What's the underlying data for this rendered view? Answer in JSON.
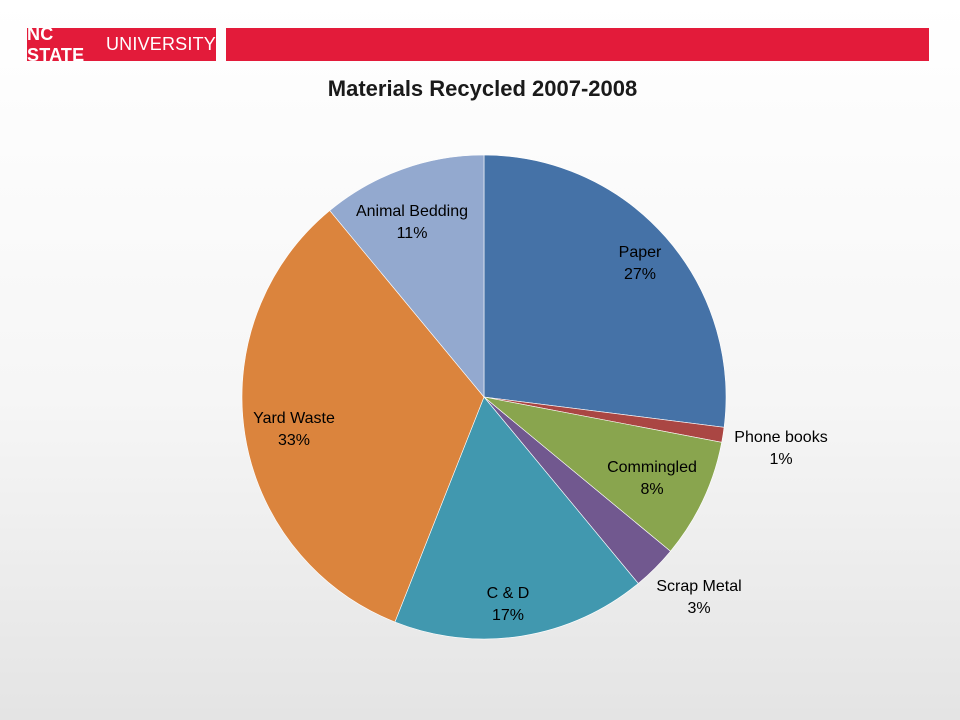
{
  "header": {
    "logo_bold": "NC STATE",
    "logo_regular": "UNIVERSITY",
    "brand_color": "#e31b3a"
  },
  "chart_data": {
    "type": "pie",
    "title": "Materials Recycled 2007-2008",
    "slices": [
      {
        "label": "Paper",
        "pct_label": "27%",
        "value": 27,
        "color": "#4572a7"
      },
      {
        "label": "Phone books",
        "pct_label": "1%",
        "value": 1,
        "color": "#aa4643"
      },
      {
        "label": "Commingled",
        "pct_label": "8%",
        "value": 8,
        "color": "#89a54e"
      },
      {
        "label": "Scrap Metal",
        "pct_label": "3%",
        "value": 3,
        "color": "#71588f"
      },
      {
        "label": "C & D",
        "pct_label": "17%",
        "value": 17,
        "color": "#4198af"
      },
      {
        "label": "Yard Waste",
        "pct_label": "33%",
        "value": 33,
        "color": "#db843d"
      },
      {
        "label": "Animal Bedding",
        "pct_label": "11%",
        "value": 11,
        "color": "#93a9cf"
      }
    ]
  }
}
